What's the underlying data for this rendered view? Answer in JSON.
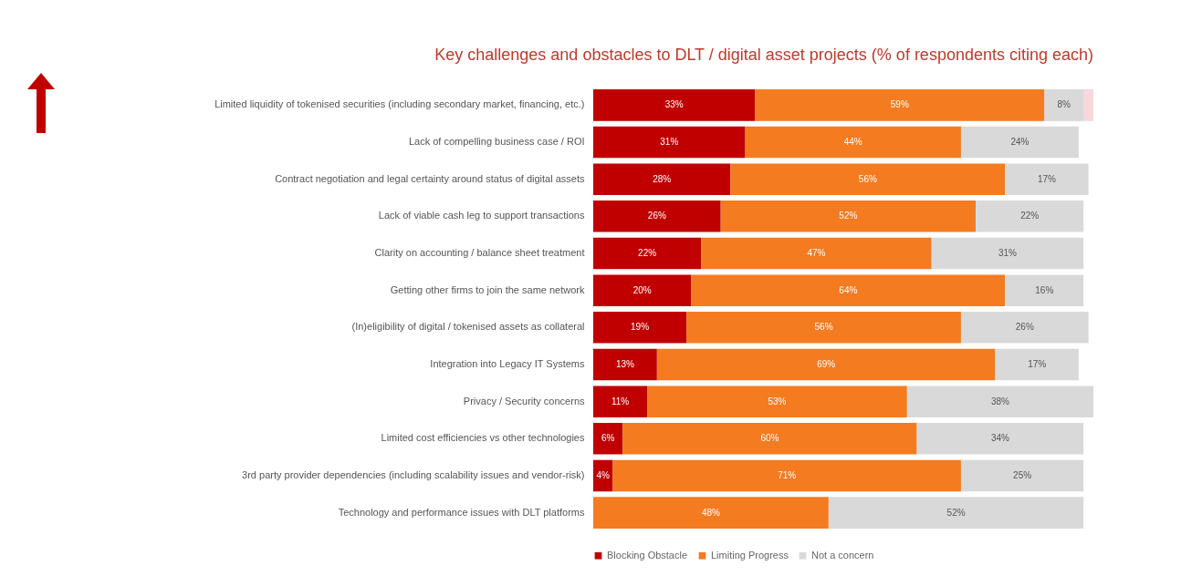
{
  "chart_data": {
    "type": "bar",
    "orientation": "horizontal",
    "stacked": true,
    "title": "Key challenges and obstacles to DLT / digital asset projects (% of respondents citing each)",
    "categories": [
      "Limited liquidity of tokenised securities (including secondary market, financing, etc.)",
      "Lack of compelling business case / ROI",
      "Contract negotiation and legal certainty around status of digital assets",
      "Lack of viable cash leg to support transactions",
      "Clarity on accounting / balance sheet treatment",
      "Getting other firms to join the same network",
      "(In)eligibility of digital / tokenised assets as collateral",
      "Integration into Legacy IT Systems",
      "Privacy / Security concerns",
      "Limited cost efficiencies vs other technologies",
      "3rd party provider dependencies (including scalability issues and vendor-risk)",
      "Technology and performance issues with DLT platforms"
    ],
    "series": [
      {
        "name": "Blocking Obstacle",
        "color": "#c00000",
        "values": [
          33,
          31,
          28,
          26,
          22,
          20,
          19,
          13,
          11,
          6,
          4,
          0
        ],
        "value_labels": [
          "33%",
          "31%",
          "28%",
          "26%",
          "22%",
          "20%",
          "19%",
          "13%",
          "11%",
          "6%",
          "4%",
          null
        ]
      },
      {
        "name": "Limiting Progress",
        "color": "#f47b20",
        "values": [
          59,
          44,
          56,
          52,
          47,
          64,
          56,
          69,
          53,
          60,
          71,
          48
        ],
        "value_labels": [
          "59%",
          "44%",
          "56%",
          "52%",
          "47%",
          "64%",
          "56%",
          "69%",
          "53%",
          "60%",
          "71%",
          "48%"
        ]
      },
      {
        "name": "Not a concern",
        "color": "#d9d9d9",
        "values": [
          8,
          24,
          17,
          22,
          31,
          16,
          26,
          17,
          38,
          34,
          25,
          52
        ],
        "value_labels": [
          "8%",
          "24%",
          "17%",
          "22%",
          "31%",
          "16%",
          "26%",
          "17%",
          "38%",
          "34%",
          "25%",
          "52%"
        ]
      }
    ],
    "bands": [
      {
        "axis": "y",
        "from": "Limited liquidity of tokenised securities (including secondary market, financing, etc.)",
        "to": "Limited liquidity of tokenised securities (including secondary market, financing, etc.)",
        "color": "#f6d3d6"
      }
    ],
    "legend": "bottom"
  }
}
